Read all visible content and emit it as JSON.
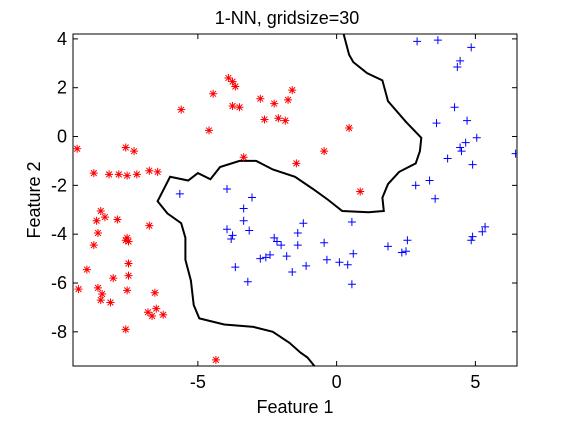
{
  "chart_data": {
    "type": "scatter",
    "title": "1-NN, gridsize=30",
    "xlabel": "Feature 1",
    "ylabel": "Feature 2",
    "xlim": [
      -9.5,
      6.5
    ],
    "ylim": [
      -9.4,
      4.2
    ],
    "xticks": [
      -5,
      0,
      5
    ],
    "xtick_labels": [
      "-5",
      "0",
      "5"
    ],
    "yticks": [
      4,
      2,
      0,
      -2,
      -4,
      -6,
      -8
    ],
    "ytick_labels": [
      "4",
      "2",
      "0",
      "-2",
      "-4",
      "-6",
      "-8"
    ],
    "grid": false,
    "legend": "none",
    "series": [
      {
        "marker": "asterisk",
        "color": "#ff0000",
        "points": [
          [
            -3.9,
            2.4
          ],
          [
            -3.75,
            2.25
          ],
          [
            -3.65,
            2.05
          ],
          [
            -4.45,
            1.75
          ],
          [
            -3.75,
            1.25
          ],
          [
            -3.5,
            1.2
          ],
          [
            -5.6,
            1.1
          ],
          [
            -2.75,
            1.55
          ],
          [
            -2.25,
            1.35
          ],
          [
            -1.6,
            1.9
          ],
          [
            -1.75,
            1.5
          ],
          [
            -2.1,
            0.75
          ],
          [
            -2.6,
            0.7
          ],
          [
            -1.85,
            0.65
          ],
          [
            -4.6,
            0.25
          ],
          [
            0.45,
            0.35
          ],
          [
            -3.35,
            -0.85
          ],
          [
            -1.45,
            -1.1
          ],
          [
            -0.45,
            -0.6
          ],
          [
            -9.35,
            -0.5
          ],
          [
            -7.6,
            -0.45
          ],
          [
            -7.3,
            -0.6
          ],
          [
            -7.55,
            -1.6
          ],
          [
            -7.2,
            -1.55
          ],
          [
            -7.85,
            -1.55
          ],
          [
            -8.75,
            -1.5
          ],
          [
            -8.2,
            -1.55
          ],
          [
            -6.75,
            -1.4
          ],
          [
            -6.45,
            -1.45
          ],
          [
            0.85,
            -2.25
          ],
          [
            -8.5,
            -3.05
          ],
          [
            -8.35,
            -3.3
          ],
          [
            -8.65,
            -3.45
          ],
          [
            -7.9,
            -3.4
          ],
          [
            -8.6,
            -3.95
          ],
          [
            -8.75,
            -4.45
          ],
          [
            -7.55,
            -4.15
          ],
          [
            -7.5,
            -4.3
          ],
          [
            -7.6,
            -4.25
          ],
          [
            -6.75,
            -3.65
          ],
          [
            -7.5,
            -5.2
          ],
          [
            -7.5,
            -5.7
          ],
          [
            -8.05,
            -5.8
          ],
          [
            -9.0,
            -5.45
          ],
          [
            -9.3,
            -6.25
          ],
          [
            -8.6,
            -6.2
          ],
          [
            -8.45,
            -6.45
          ],
          [
            -8.5,
            -6.7
          ],
          [
            -7.55,
            -6.3
          ],
          [
            -8.15,
            -6.8
          ],
          [
            -6.55,
            -6.4
          ],
          [
            -6.5,
            -7.05
          ],
          [
            -6.25,
            -7.3
          ],
          [
            -6.8,
            -7.2
          ],
          [
            -6.65,
            -7.35
          ],
          [
            -7.6,
            -7.9
          ],
          [
            -4.35,
            -9.15
          ]
        ]
      },
      {
        "marker": "plus",
        "color": "#0000ff",
        "points": [
          [
            2.9,
            3.9
          ],
          [
            3.65,
            3.95
          ],
          [
            4.85,
            3.65
          ],
          [
            4.45,
            3.1
          ],
          [
            4.35,
            2.85
          ],
          [
            4.25,
            1.2
          ],
          [
            3.6,
            0.55
          ],
          [
            4.7,
            0.65
          ],
          [
            5.05,
            -0.05
          ],
          [
            4.65,
            -0.25
          ],
          [
            4.45,
            -0.45
          ],
          [
            4.5,
            -0.6
          ],
          [
            4.0,
            -0.9
          ],
          [
            6.45,
            -0.7
          ],
          [
            4.9,
            -1.15
          ],
          [
            3.35,
            -1.8
          ],
          [
            2.85,
            -2.0
          ],
          [
            3.55,
            -2.55
          ],
          [
            -5.65,
            -2.35
          ],
          [
            -3.95,
            -2.15
          ],
          [
            -3.35,
            -2.95
          ],
          [
            -3.05,
            -2.5
          ],
          [
            -3.15,
            -3.85
          ],
          [
            -3.35,
            -3.45
          ],
          [
            -3.95,
            -3.8
          ],
          [
            -3.75,
            -4.05
          ],
          [
            -3.8,
            -4.2
          ],
          [
            -2.25,
            -4.15
          ],
          [
            -2.15,
            -4.3
          ],
          [
            -2.0,
            -4.45
          ],
          [
            -1.4,
            -4.45
          ],
          [
            -1.2,
            -3.55
          ],
          [
            -1.4,
            -3.95
          ],
          [
            0.55,
            -3.5
          ],
          [
            -0.45,
            -4.35
          ],
          [
            -3.65,
            -5.35
          ],
          [
            -2.75,
            -5.0
          ],
          [
            -2.4,
            -4.85
          ],
          [
            -2.55,
            -4.95
          ],
          [
            -1.8,
            -4.9
          ],
          [
            -1.6,
            -5.55
          ],
          [
            -1.1,
            -5.3
          ],
          [
            -0.35,
            -5.05
          ],
          [
            0.6,
            -4.8
          ],
          [
            0.4,
            -5.25
          ],
          [
            0.1,
            -5.15
          ],
          [
            0.55,
            -6.05
          ],
          [
            1.85,
            -4.5
          ],
          [
            2.55,
            -4.25
          ],
          [
            2.5,
            -4.7
          ],
          [
            2.35,
            -4.75
          ],
          [
            4.9,
            -4.1
          ],
          [
            5.35,
            -3.7
          ],
          [
            5.25,
            -3.9
          ],
          [
            4.85,
            -4.25
          ],
          [
            -3.2,
            -5.95
          ]
        ]
      }
    ],
    "decision_boundary": [
      [
        -0.8,
        -9.4
      ],
      [
        -1.05,
        -9.05
      ],
      [
        -1.3,
        -8.85
      ],
      [
        -1.7,
        -8.45
      ],
      [
        -2.3,
        -8.0
      ],
      [
        -3.0,
        -7.8
      ],
      [
        -4.05,
        -7.7
      ],
      [
        -4.95,
        -7.45
      ],
      [
        -5.15,
        -6.9
      ],
      [
        -5.25,
        -5.9
      ],
      [
        -5.45,
        -5.05
      ],
      [
        -5.45,
        -4.15
      ],
      [
        -5.6,
        -3.55
      ],
      [
        -6.1,
        -3.15
      ],
      [
        -6.45,
        -2.65
      ],
      [
        -6.0,
        -1.65
      ],
      [
        -5.35,
        -1.8
      ],
      [
        -5.0,
        -1.5
      ],
      [
        -4.55,
        -1.75
      ],
      [
        -4.2,
        -1.25
      ],
      [
        -3.5,
        -1.0
      ],
      [
        -2.9,
        -1.0
      ],
      [
        -2.3,
        -1.35
      ],
      [
        -1.5,
        -1.65
      ],
      [
        -0.85,
        -2.15
      ],
      [
        -0.3,
        -2.6
      ],
      [
        0.2,
        -3.05
      ],
      [
        1.15,
        -3.1
      ],
      [
        1.7,
        -3.05
      ],
      [
        1.65,
        -2.5
      ],
      [
        1.85,
        -1.95
      ],
      [
        2.25,
        -1.45
      ],
      [
        2.85,
        -1.1
      ],
      [
        3.0,
        -0.6
      ],
      [
        3.05,
        -0.05
      ],
      [
        2.5,
        0.6
      ],
      [
        1.85,
        1.45
      ],
      [
        1.65,
        2.3
      ],
      [
        1.1,
        2.6
      ],
      [
        0.6,
        3.05
      ],
      [
        0.45,
        3.35
      ],
      [
        0.25,
        4.2
      ]
    ]
  }
}
